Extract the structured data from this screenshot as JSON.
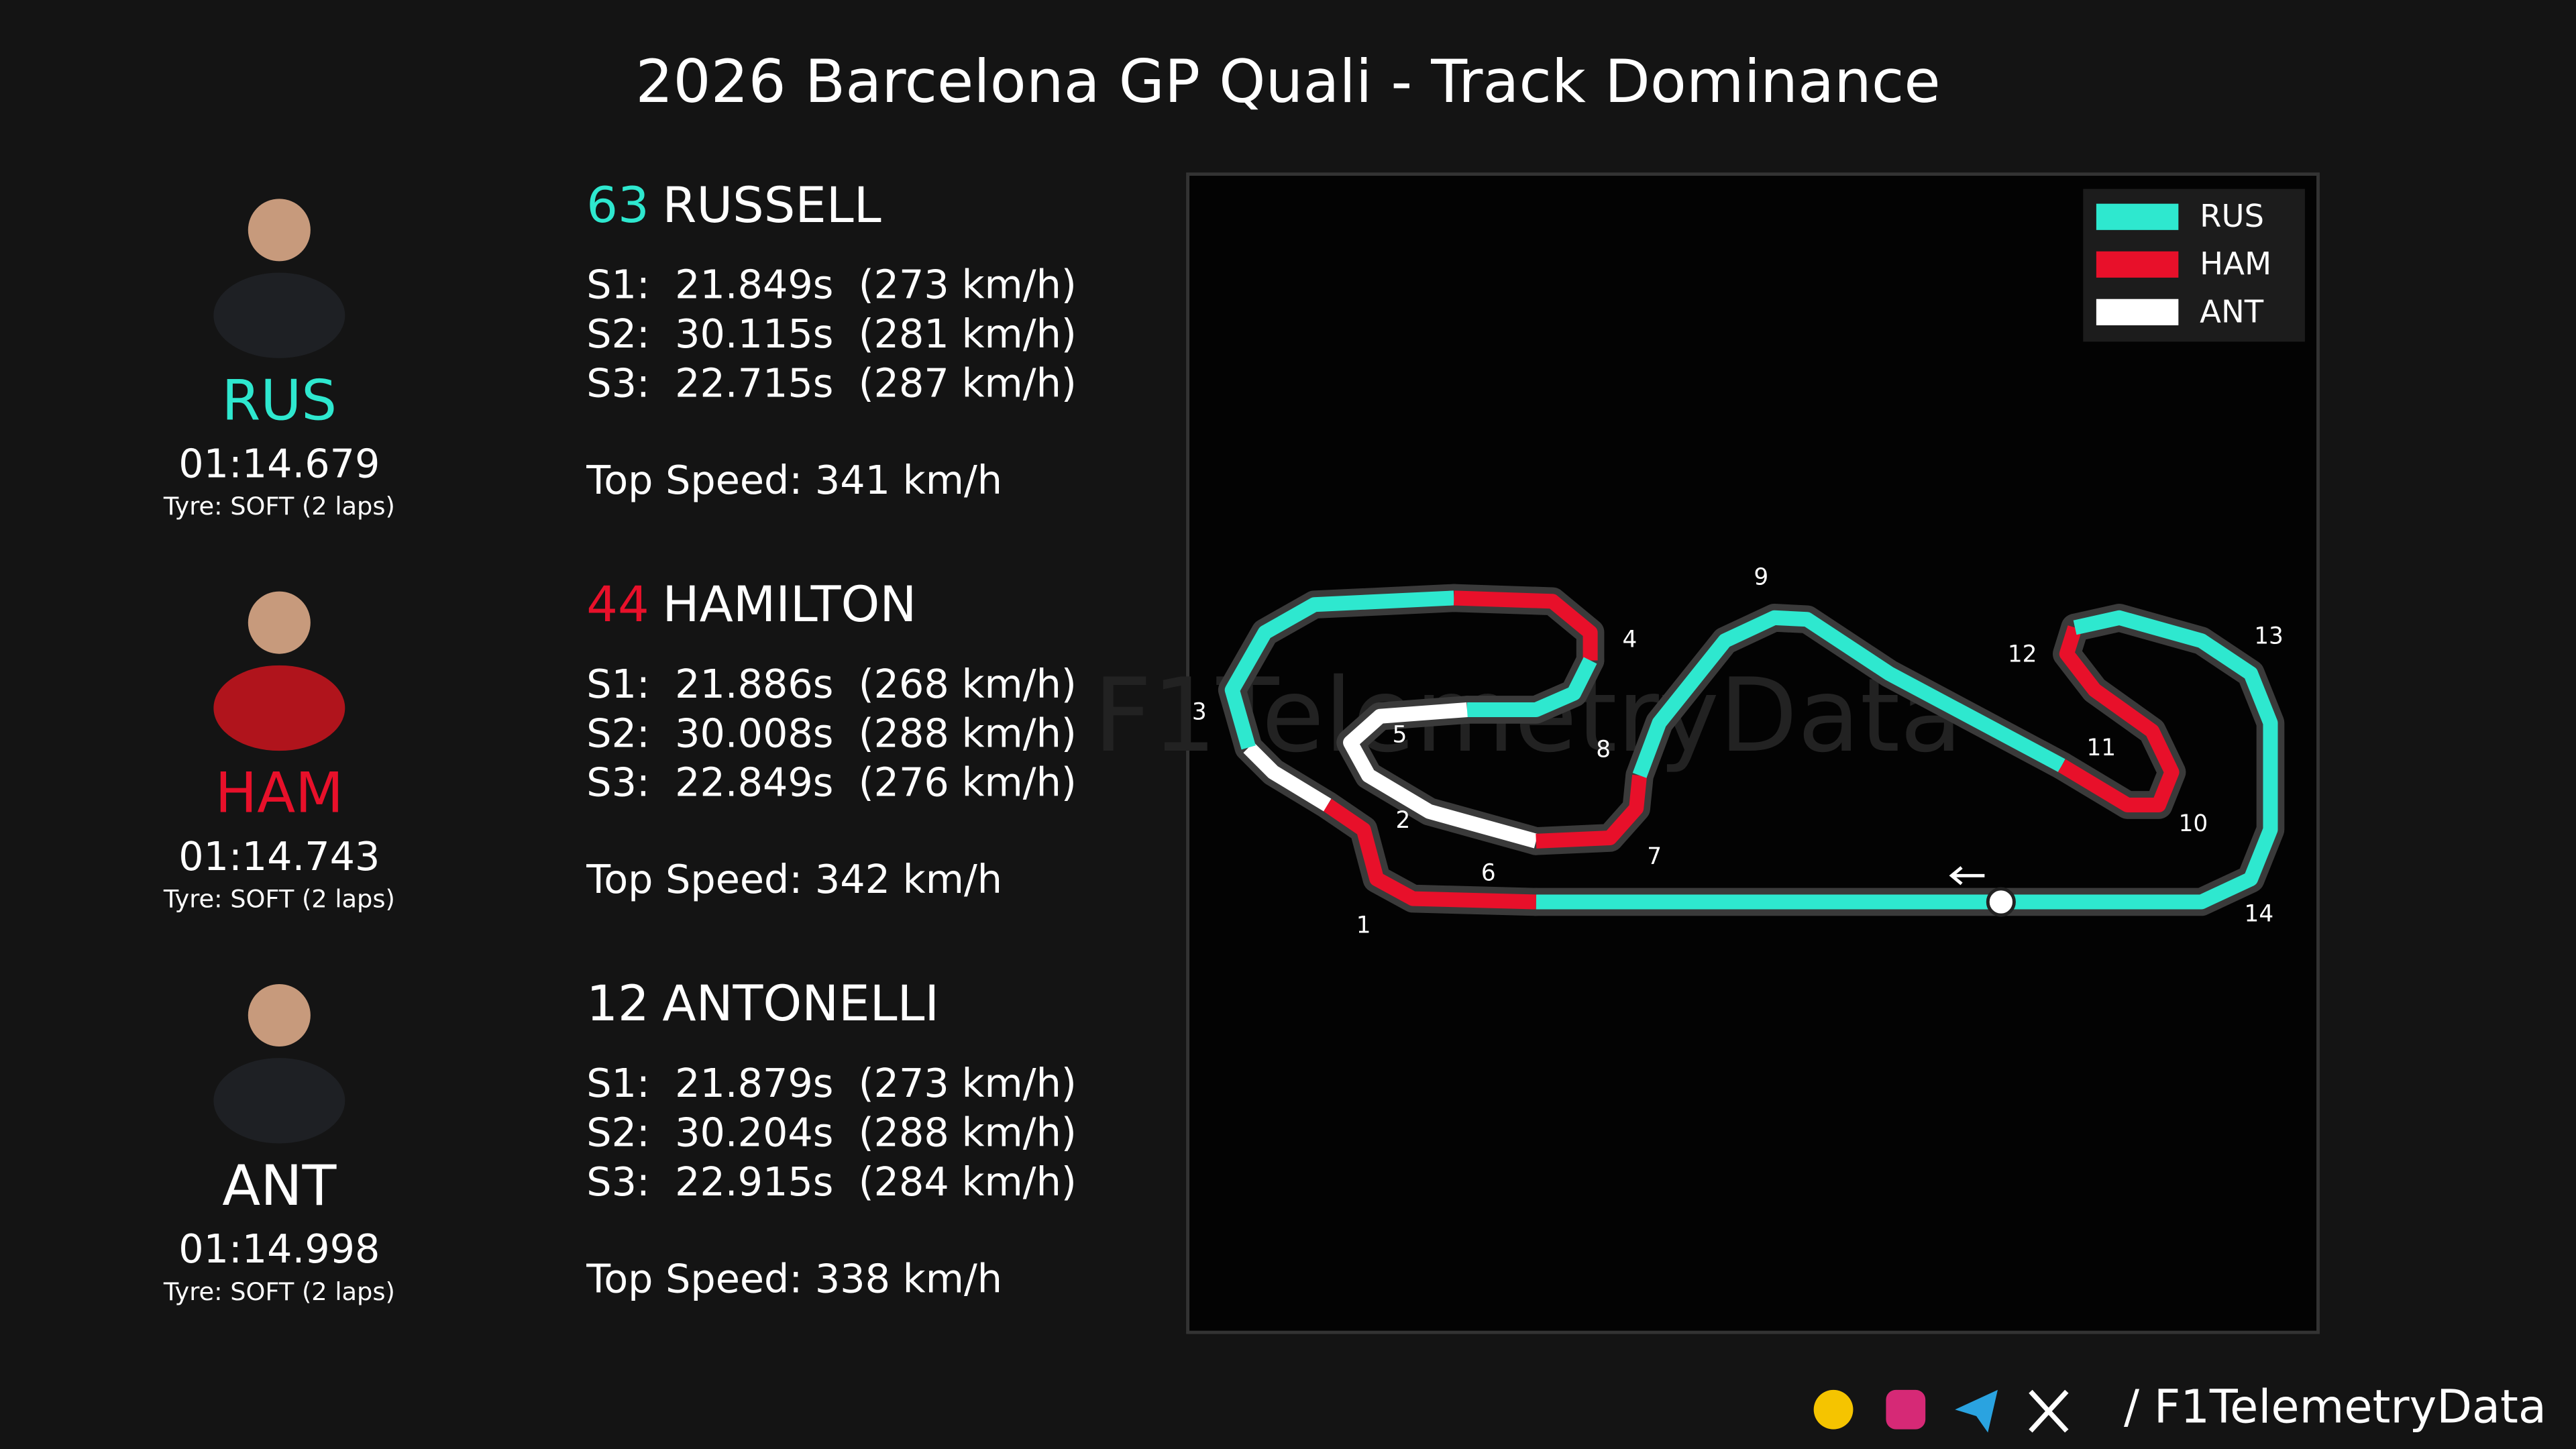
{
  "title": "2026 Barcelona GP Quali - Track Dominance",
  "drivers": [
    {
      "code": "RUS",
      "color": "#2ee8cf",
      "lap_time": "01:14.679",
      "tyre": "Tyre: SOFT (2 laps)",
      "number": "63",
      "name": "RUSSELL",
      "sectors": [
        "S1:  21.849s  (273 km/h)",
        "S2:  30.115s  (281 km/h)",
        "S3:  22.715s  (287 km/h)"
      ],
      "top_speed": "Top Speed: 341 km/h"
    },
    {
      "code": "HAM",
      "color": "#e8102a",
      "lap_time": "01:14.743",
      "tyre": "Tyre: SOFT (2 laps)",
      "number": "44",
      "name": "HAMILTON",
      "sectors": [
        "S1:  21.886s  (268 km/h)",
        "S2:  30.008s  (288 km/h)",
        "S3:  22.849s  (276 km/h)"
      ],
      "top_speed": "Top Speed: 342 km/h"
    },
    {
      "code": "ANT",
      "color": "#ffffff",
      "lap_time": "01:14.998",
      "tyre": "Tyre: SOFT (2 laps)",
      "number": "12",
      "name": "ANTONELLI",
      "sectors": [
        "S1:  21.879s  (273 km/h)",
        "S2:  30.204s  (288 km/h)",
        "S3:  22.915s  (284 km/h)"
      ],
      "top_speed": "Top Speed: 338 km/h"
    }
  ],
  "corners": [
    "1",
    "2",
    "3",
    "4",
    "5",
    "6",
    "7",
    "8",
    "9",
    "10",
    "11",
    "12",
    "13",
    "14"
  ],
  "watermark": "F1TelemetryData",
  "footer": "/ F1TelemetryData"
}
